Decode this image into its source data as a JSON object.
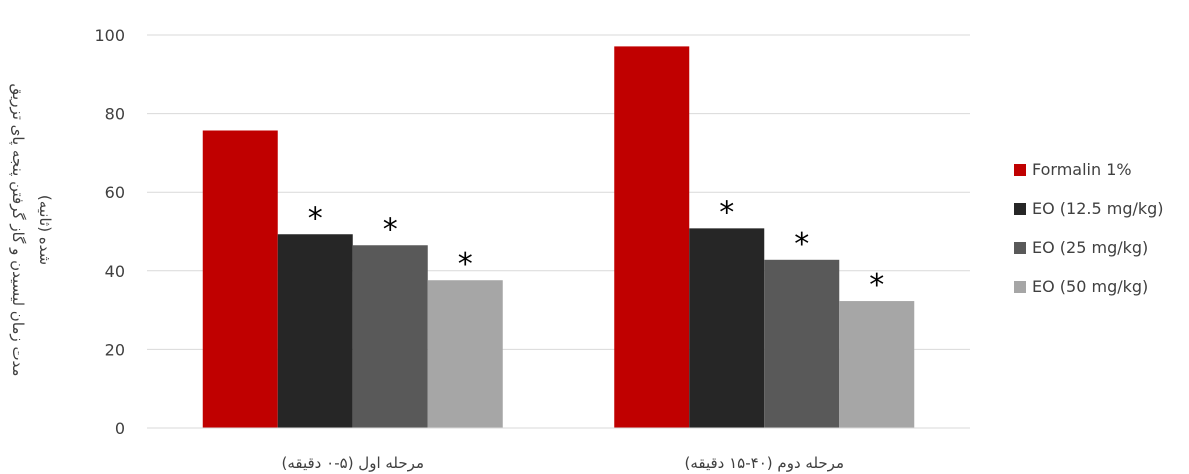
{
  "chart_data": {
    "type": "bar",
    "ylabel_lines": [
      "مدت زمان لیسیدن و گاز گرفتن پنجه پای تزریق",
      "شده (ثانیه)"
    ],
    "categories": [
      "مرحله اول (۵-۰ دقیقه)",
      "مرحله دوم (۴۰-۱۵ دقیقه)"
    ],
    "ylim": [
      0,
      100
    ],
    "yticks": [
      0,
      20,
      40,
      60,
      80,
      100
    ],
    "grid": true,
    "legend_position": "right",
    "series": [
      {
        "name": "Formalin 1%",
        "values": [
          75.7,
          97.1
        ],
        "color": "#c00000",
        "significant": [
          false,
          false
        ]
      },
      {
        "name": "EO (12.5 mg/kg)",
        "values": [
          49.3,
          50.8
        ],
        "color": "#262626",
        "significant": [
          true,
          true
        ]
      },
      {
        "name": "EO (25 mg/kg)",
        "values": [
          46.5,
          42.8
        ],
        "color": "#595959",
        "significant": [
          true,
          true
        ]
      },
      {
        "name": "EO (50 mg/kg)",
        "values": [
          37.6,
          32.3
        ],
        "color": "#a6a6a6",
        "significant": [
          true,
          true
        ]
      }
    ],
    "significance_marker": "*"
  }
}
